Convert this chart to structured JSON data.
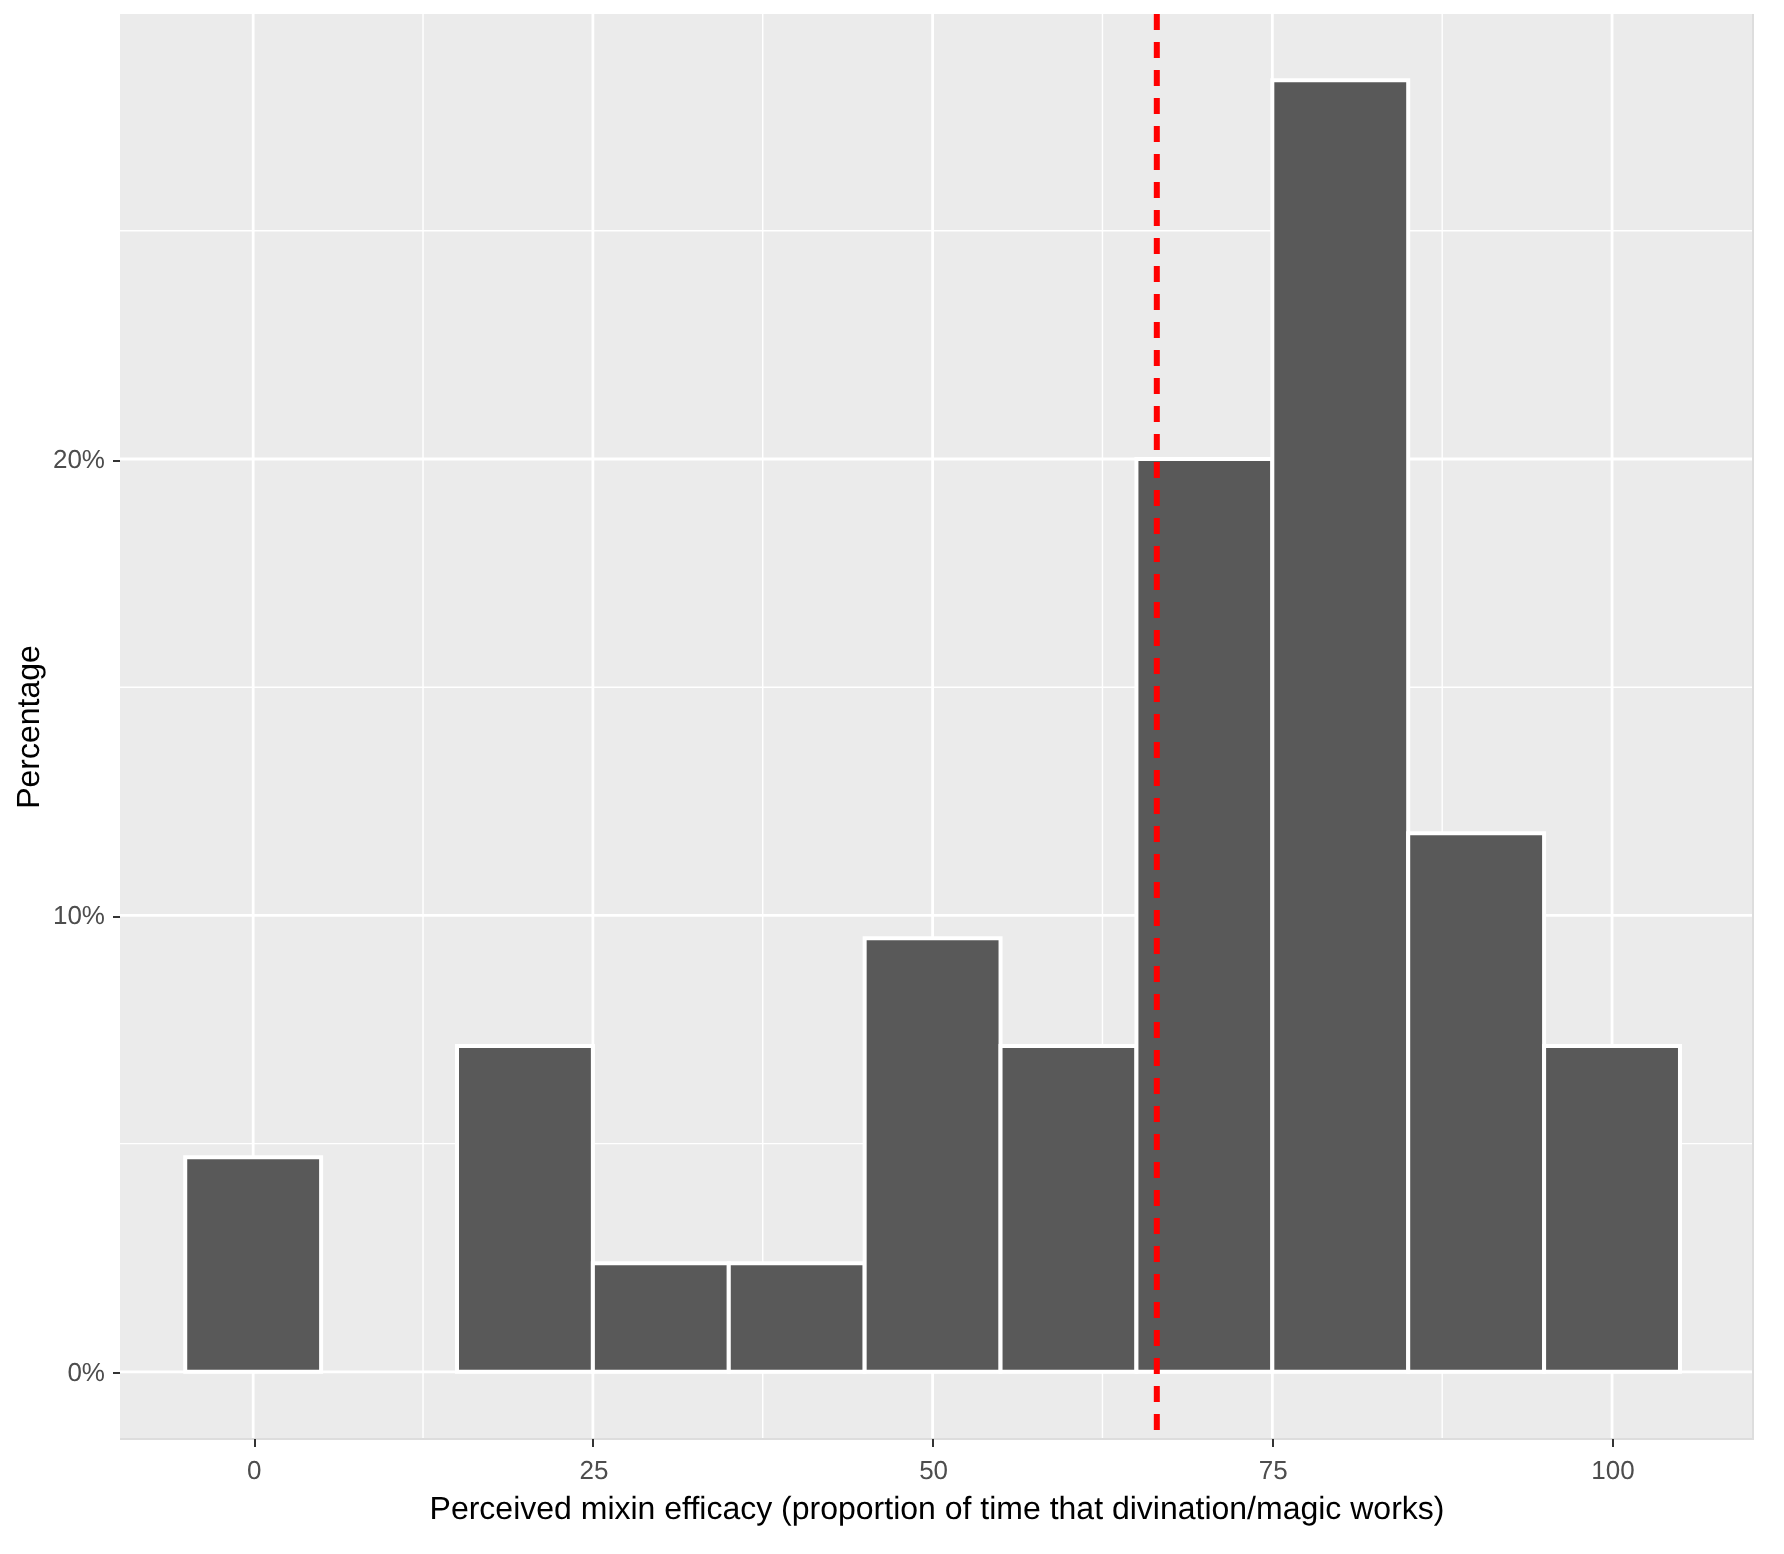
{
  "chart_data": {
    "type": "histogram",
    "xlabel": "Perceived mixin efficacy (proportion of time that divination/magic works)",
    "ylabel": "Percentage",
    "bins": [
      -5,
      5,
      15,
      25,
      35,
      45,
      55,
      65,
      75,
      85,
      95,
      105
    ],
    "values": [
      4.7,
      0,
      7.14,
      2.38,
      2.38,
      9.5,
      7.14,
      20,
      28.3,
      11.8,
      7.14
    ],
    "color": "#595959",
    "xlim": [
      -9.8,
      110.3
    ],
    "xticks": [
      0,
      25,
      50,
      75,
      100
    ],
    "ylim": [
      -1.45,
      29.75
    ],
    "yticks": [
      {
        "value": 0,
        "label": "0%"
      },
      {
        "value": 10,
        "label": "10%"
      },
      {
        "value": 20,
        "label": "20%"
      }
    ],
    "grid": true,
    "ref_lines": [
      {
        "axis": "x",
        "value": 66.5,
        "color": "#ff0000",
        "line_style": "dashed"
      }
    ]
  }
}
